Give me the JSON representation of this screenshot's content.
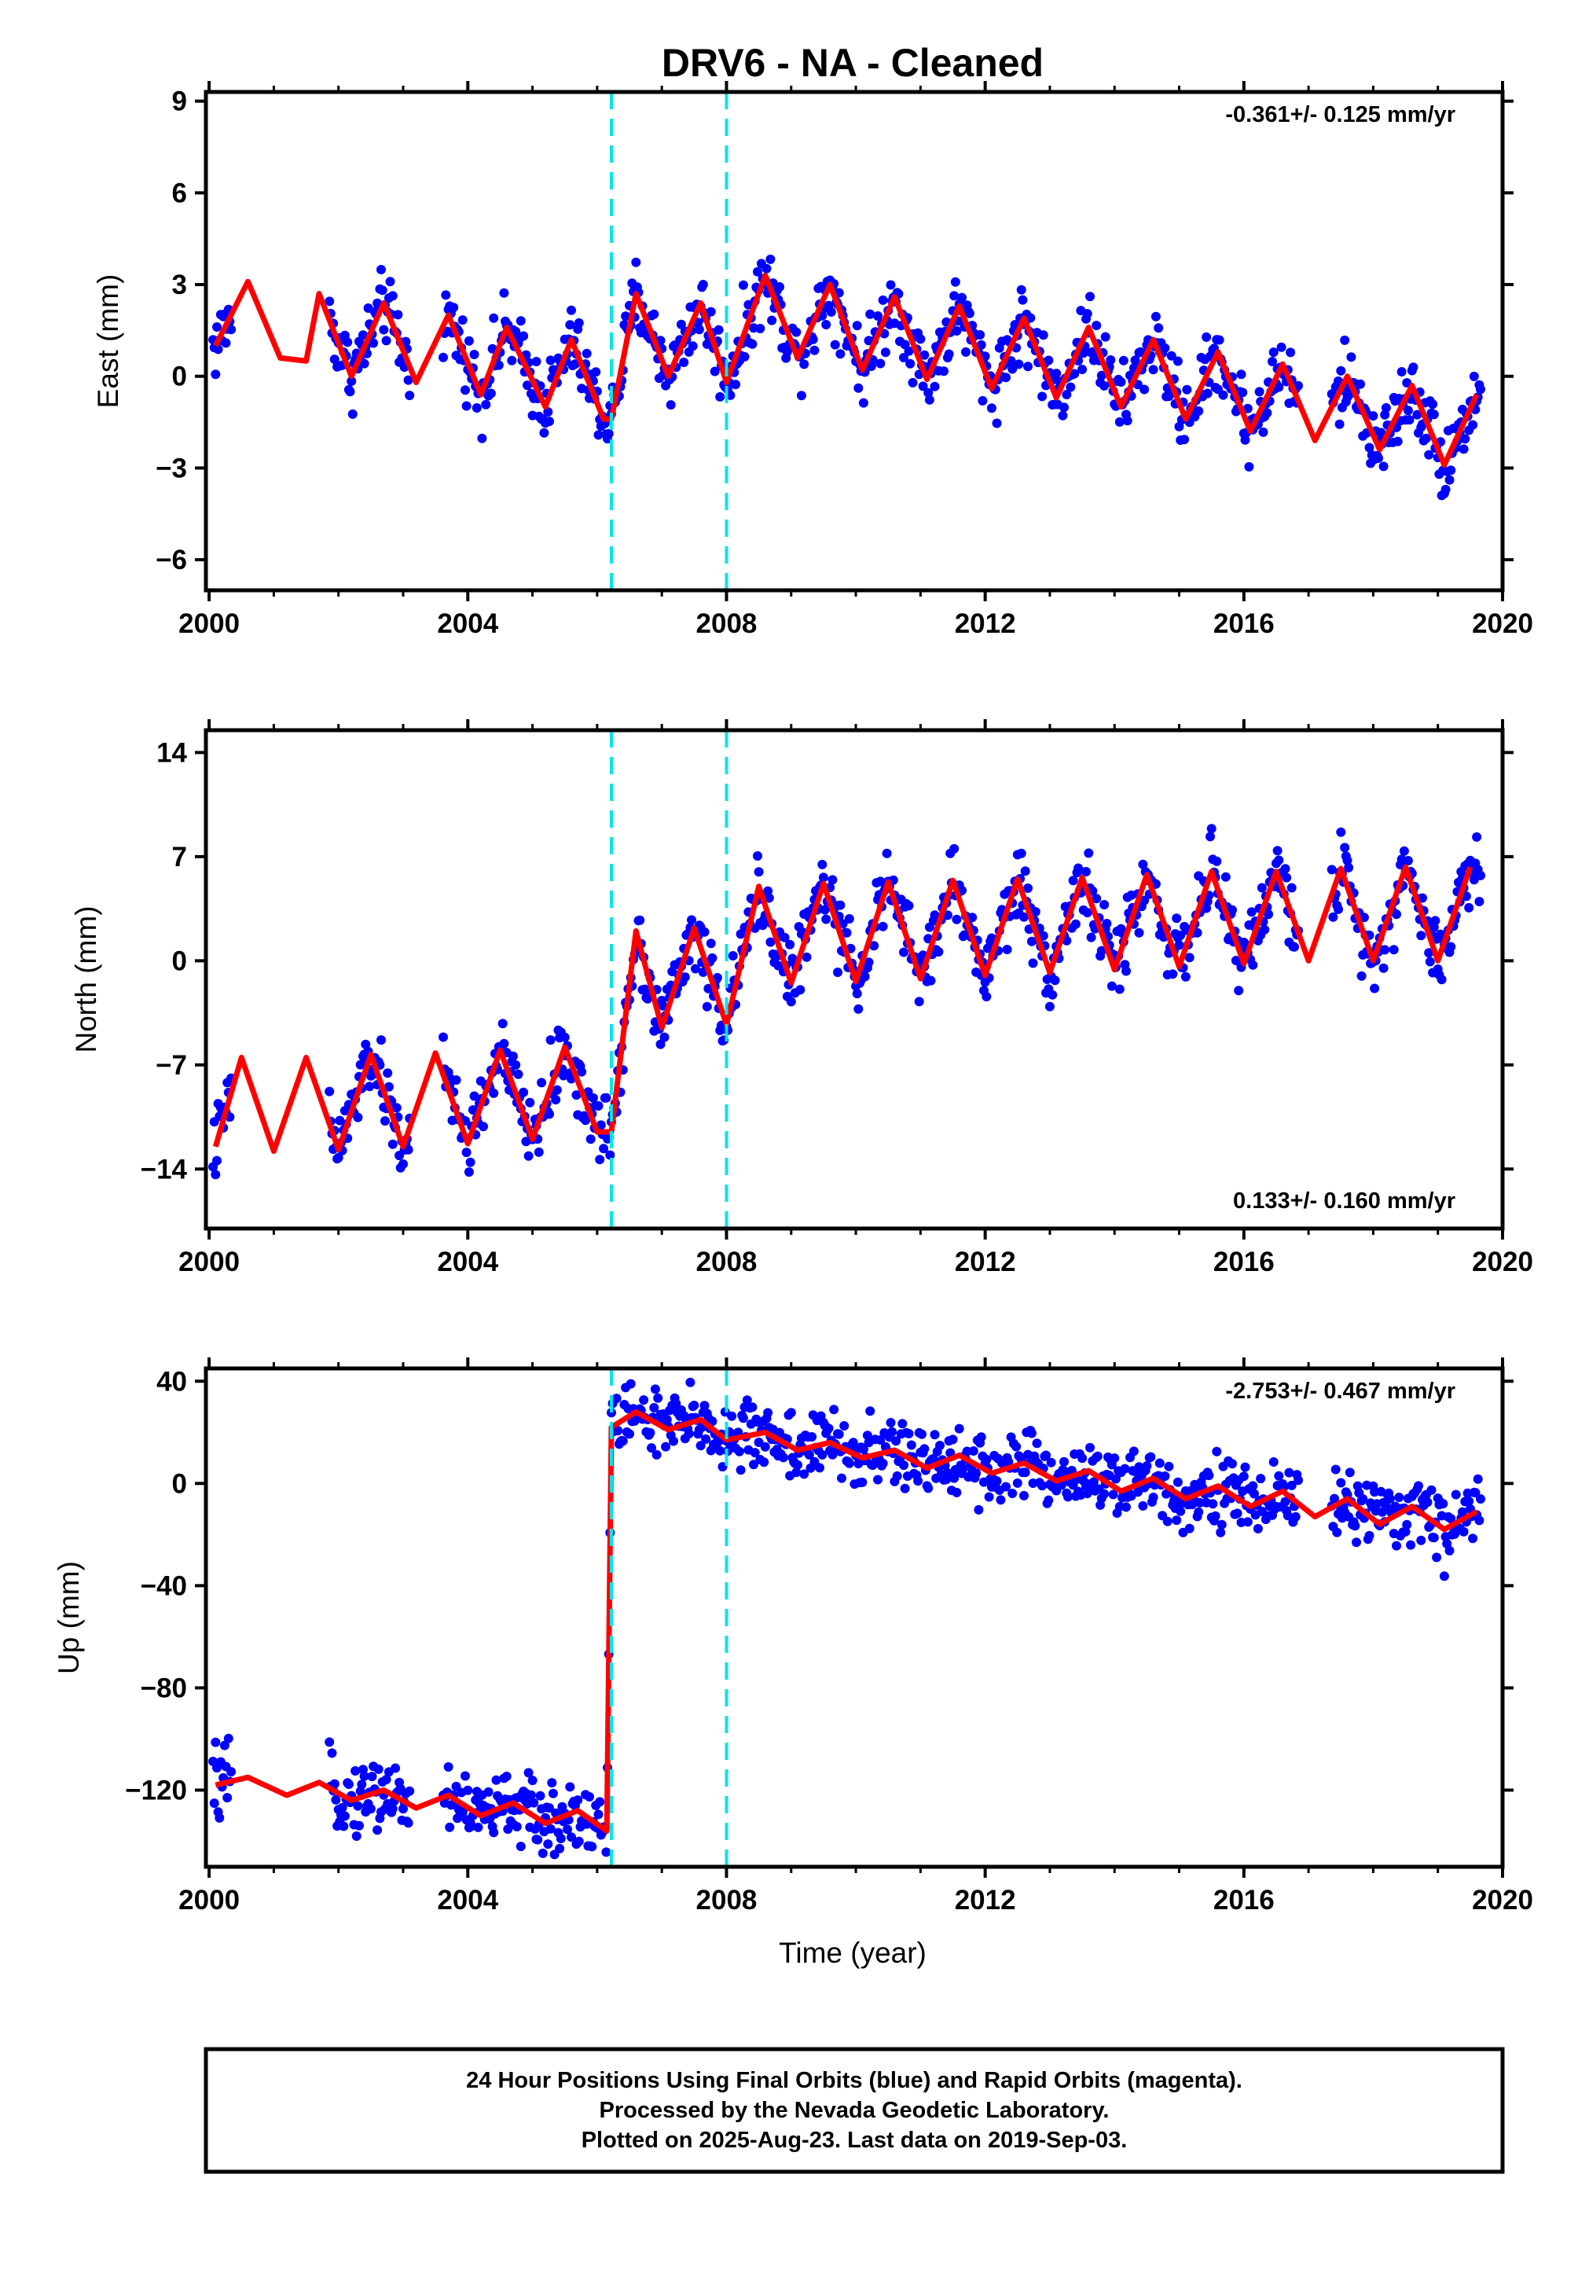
{
  "title": "DRV6  - NA - Cleaned",
  "xlabel": "Time (year)",
  "footer": [
    "24 Hour Positions Using Final Orbits (blue) and Rapid Orbits (magenta).",
    "Processed by the Nevada Geodetic Laboratory.",
    "Plotted on 2025-Aug-23. Last data on 2019-Sep-03."
  ],
  "colors": {
    "points": "#0000ff",
    "model": "#ff0000",
    "events": "#00e5ee",
    "frame": "#000000"
  },
  "chart_data": [
    {
      "type": "scatter",
      "component": "East",
      "ylabel": "East (mm)",
      "rate": "-0.361+/- 0.125 mm/yr",
      "rate_position": "top-right",
      "xlim": [
        1999.95,
        2020.0
      ],
      "ylim": [
        -7.0,
        9.3
      ],
      "xticks": [
        2000,
        2004,
        2008,
        2012,
        2016,
        2020
      ],
      "yticks": [
        -6,
        -3,
        0,
        3,
        6,
        9
      ],
      "event_lines": [
        2006.22,
        2008.0
      ],
      "data_gaps": [
        [
          2000.35,
          2001.85
        ],
        [
          2003.1,
          2003.6
        ],
        [
          2016.85,
          2017.35
        ]
      ],
      "model": {
        "x": [
          2000.1,
          2000.6,
          2001.1,
          2001.5,
          2001.7,
          2002.2,
          2002.7,
          2003.2,
          2003.7,
          2004.2,
          2004.6,
          2005.2,
          2005.6,
          2006.1,
          2006.22,
          2006.6,
          2007.1,
          2007.6,
          2008.0,
          2008.6,
          2009.1,
          2009.6,
          2010.1,
          2010.6,
          2011.1,
          2011.6,
          2012.1,
          2012.6,
          2013.1,
          2013.6,
          2014.1,
          2014.6,
          2015.1,
          2015.6,
          2016.1,
          2016.6,
          2017.1,
          2017.6,
          2018.1,
          2018.6,
          2019.1,
          2019.6
        ],
        "y": [
          1.0,
          3.1,
          0.6,
          0.5,
          2.7,
          0.0,
          2.4,
          -0.2,
          2.0,
          -0.6,
          1.6,
          -1.0,
          1.2,
          -1.4,
          -1.4,
          2.7,
          0.0,
          2.4,
          -0.2,
          3.3,
          0.6,
          3.0,
          0.2,
          2.6,
          -0.1,
          2.3,
          -0.4,
          1.9,
          -0.7,
          1.6,
          -1.0,
          1.2,
          -1.4,
          0.8,
          -1.8,
          0.4,
          -2.1,
          0.0,
          -2.4,
          -0.3,
          -2.9,
          -0.6
        ]
      }
    },
    {
      "type": "scatter",
      "component": "North",
      "ylabel": "North (mm)",
      "rate": "0.133+/- 0.160 mm/yr",
      "rate_position": "bottom-right",
      "xlim": [
        1999.95,
        2020.0
      ],
      "ylim": [
        -18.0,
        15.5
      ],
      "xticks": [
        2000,
        2004,
        2008,
        2012,
        2016,
        2020
      ],
      "yticks": [
        -14,
        -7,
        0,
        7,
        14
      ],
      "event_lines": [
        2006.22,
        2008.0
      ],
      "data_gaps": [
        [
          2000.35,
          2001.85
        ],
        [
          2003.1,
          2003.6
        ],
        [
          2016.85,
          2017.35
        ]
      ],
      "model": {
        "x": [
          2000.1,
          2000.5,
          2001.0,
          2001.5,
          2002.0,
          2002.5,
          2003.0,
          2003.5,
          2004.0,
          2004.5,
          2005.0,
          2005.5,
          2006.0,
          2006.22,
          2006.6,
          2007.0,
          2007.5,
          2008.0,
          2008.5,
          2009.0,
          2009.5,
          2010.0,
          2010.5,
          2011.0,
          2011.5,
          2012.0,
          2012.5,
          2013.0,
          2013.5,
          2014.0,
          2014.5,
          2015.0,
          2015.5,
          2016.0,
          2016.5,
          2017.0,
          2017.5,
          2018.0,
          2018.5,
          2019.0,
          2019.5
        ],
        "y": [
          -12.5,
          -6.5,
          -12.8,
          -6.5,
          -12.7,
          -6.3,
          -12.5,
          -6.2,
          -12.3,
          -6.0,
          -12.0,
          -5.8,
          -11.5,
          -11.5,
          2.0,
          -4.5,
          2.2,
          -4.3,
          5.0,
          -1.5,
          5.2,
          -1.4,
          5.3,
          -1.2,
          5.4,
          -1.0,
          5.5,
          -0.8,
          5.6,
          -0.6,
          5.8,
          -0.4,
          6.0,
          -0.2,
          6.0,
          0.0,
          6.2,
          0.0,
          6.3,
          0.0,
          6.3
        ]
      }
    },
    {
      "type": "scatter",
      "component": "Up",
      "ylabel": "Up (mm)",
      "rate": "-2.753+/- 0.467 mm/yr",
      "rate_position": "top-right",
      "xlim": [
        1999.95,
        2020.0
      ],
      "ylim": [
        -150.0,
        45.0
      ],
      "xticks": [
        2000,
        2004,
        2008,
        2012,
        2016,
        2020
      ],
      "yticks": [
        -120,
        -80,
        -40,
        0,
        40
      ],
      "event_lines": [
        2006.22,
        2008.0
      ],
      "data_gaps": [
        [
          2000.35,
          2001.85
        ],
        [
          2003.1,
          2003.6
        ],
        [
          2016.85,
          2017.35
        ]
      ],
      "model": {
        "x": [
          2000.1,
          2000.6,
          2001.2,
          2001.7,
          2002.2,
          2002.7,
          2003.2,
          2003.7,
          2004.2,
          2004.7,
          2005.2,
          2005.7,
          2006.15,
          2006.22,
          2006.6,
          2007.1,
          2007.6,
          2008.0,
          2008.6,
          2009.1,
          2009.6,
          2010.1,
          2010.6,
          2011.1,
          2011.6,
          2012.1,
          2012.6,
          2013.1,
          2013.6,
          2014.1,
          2014.6,
          2015.1,
          2015.6,
          2016.1,
          2016.6,
          2017.1,
          2017.6,
          2018.1,
          2018.6,
          2019.1,
          2019.6
        ],
        "y": [
          -118,
          -115,
          -122,
          -117,
          -124,
          -120,
          -127,
          -122,
          -130,
          -125,
          -133,
          -128,
          -136,
          22,
          28,
          21,
          25,
          17,
          20,
          13,
          16,
          10,
          13,
          6,
          11,
          4,
          8,
          1,
          5,
          -3,
          2,
          -6,
          -1,
          -9,
          -3,
          -13,
          -6,
          -16,
          -9,
          -18,
          -11
        ]
      }
    }
  ]
}
